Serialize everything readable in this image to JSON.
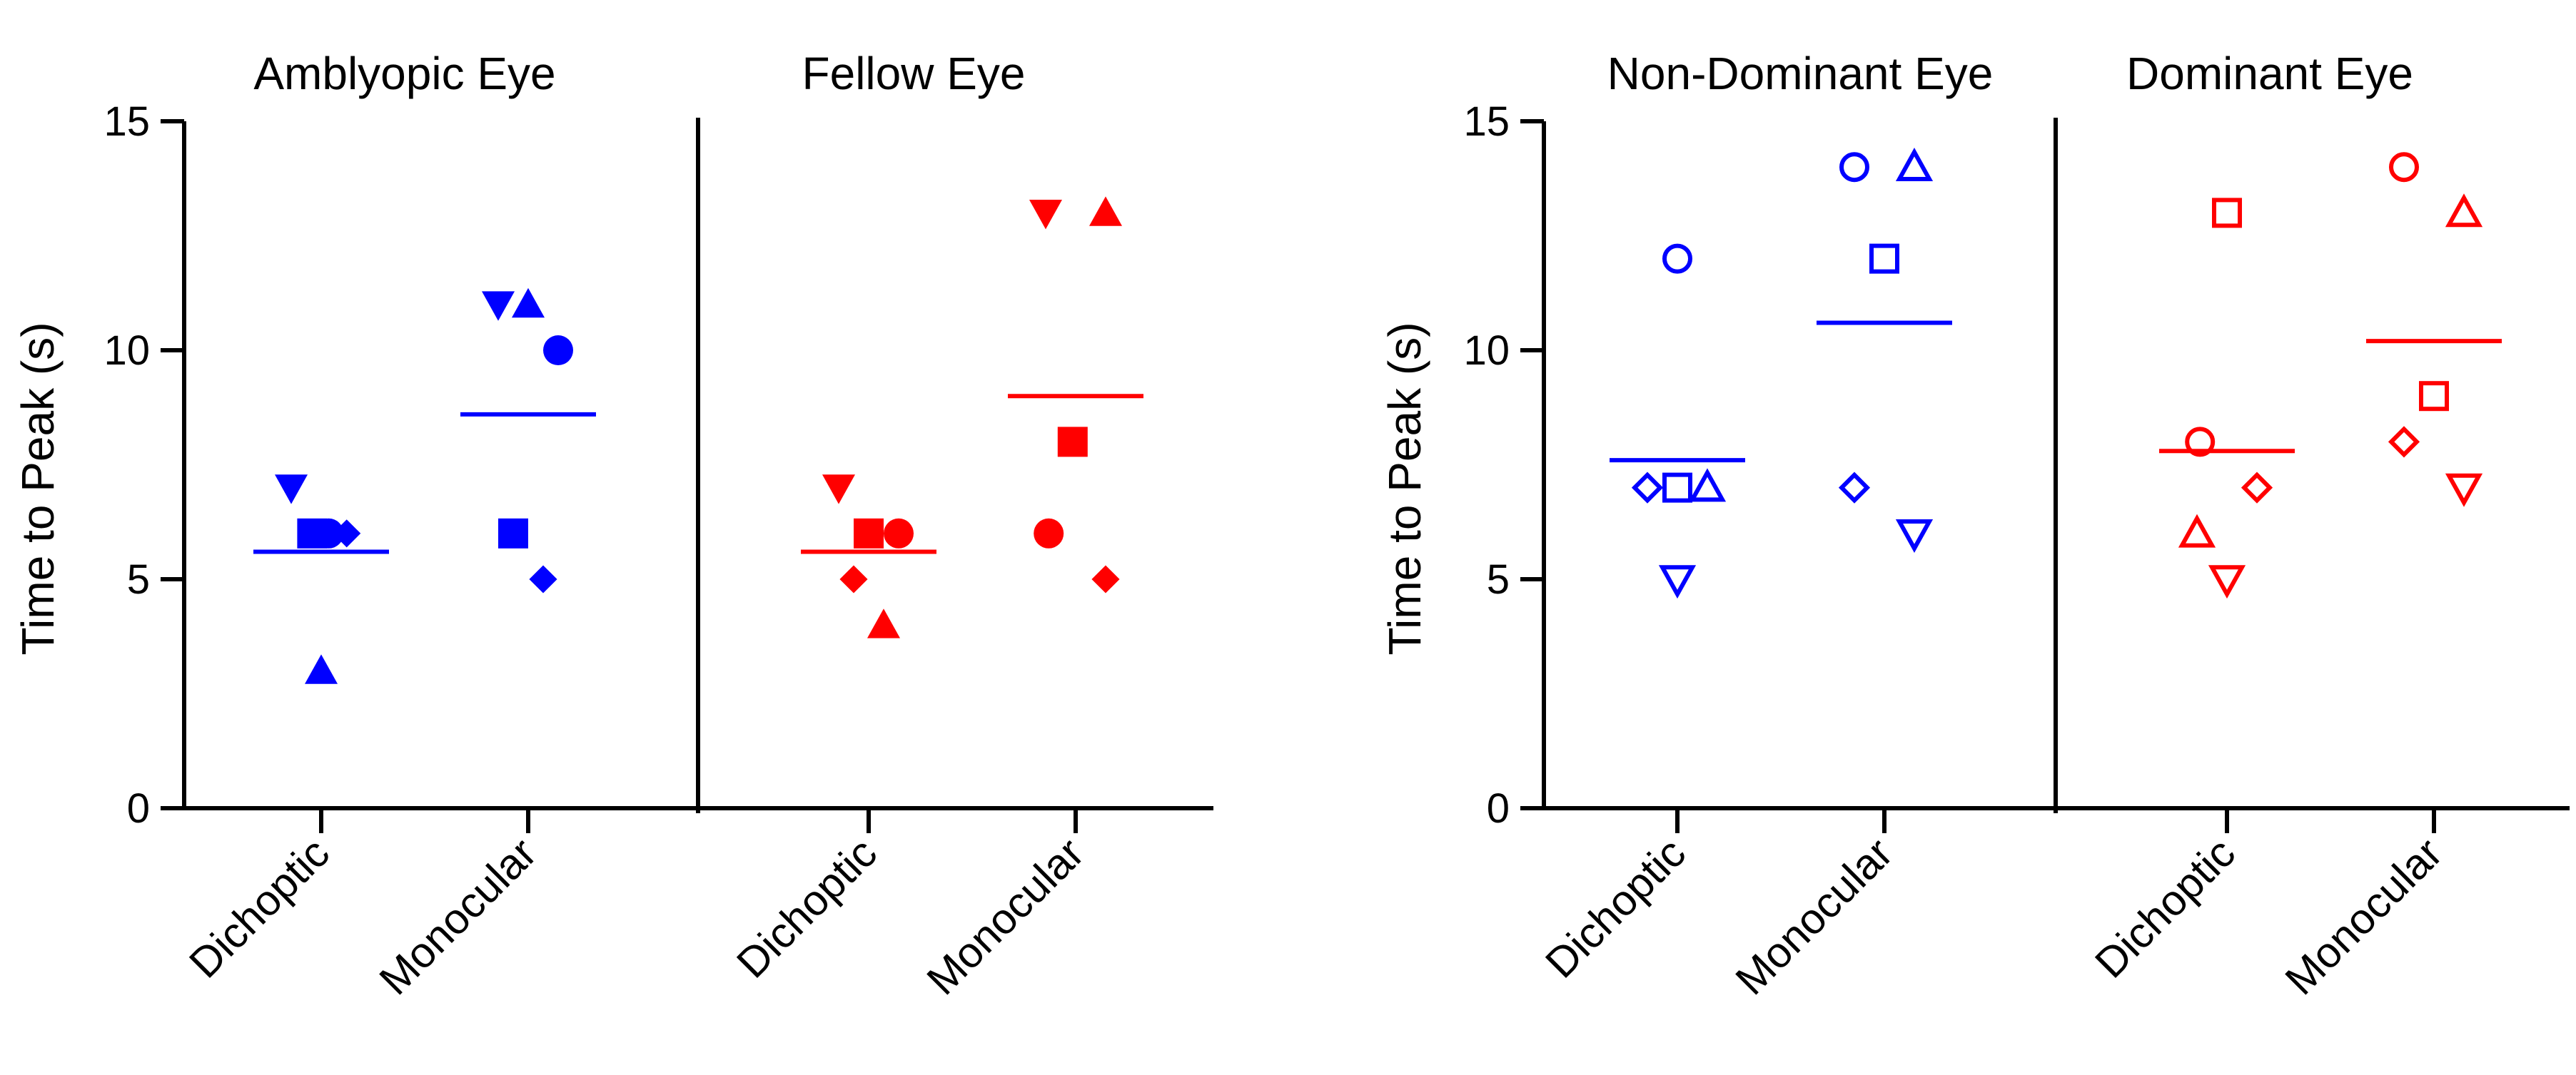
{
  "chart_data": [
    {
      "type": "scatter",
      "subtype": "dot-plot-with-mean",
      "marker_style": "filled",
      "ylabel": "Time to Peak (s)",
      "ylim": [
        0,
        15
      ],
      "yticks": [
        "0",
        "5",
        "10",
        "15"
      ],
      "categories": [
        "Dichoptic",
        "Monocular"
      ],
      "panels": [
        {
          "title": "Amblyopic Eye",
          "color": "#0000ff",
          "groups": [
            {
              "category": "Dichoptic",
              "mean": 5.6,
              "points": [
                {
                  "marker": "triangle-down",
                  "offset": -1,
                  "y": 7
                },
                {
                  "marker": "square",
                  "offset": -0.3,
                  "y": 6
                },
                {
                  "marker": "circle",
                  "offset": 0.25,
                  "y": 6
                },
                {
                  "marker": "diamond",
                  "offset": 0.85,
                  "y": 6
                },
                {
                  "marker": "triangle-up",
                  "offset": 0,
                  "y": 3
                }
              ]
            },
            {
              "category": "Monocular",
              "mean": 8.6,
              "points": [
                {
                  "marker": "triangle-down",
                  "offset": -1,
                  "y": 11
                },
                {
                  "marker": "triangle-up",
                  "offset": 0,
                  "y": 11
                },
                {
                  "marker": "circle",
                  "offset": 1,
                  "y": 10
                },
                {
                  "marker": "square",
                  "offset": -0.5,
                  "y": 6
                },
                {
                  "marker": "diamond",
                  "offset": 0.5,
                  "y": 5
                }
              ]
            }
          ]
        },
        {
          "title": "Fellow Eye",
          "color": "#ff0000",
          "groups": [
            {
              "category": "Dichoptic",
              "mean": 5.6,
              "points": [
                {
                  "marker": "triangle-down",
                  "offset": -1,
                  "y": 7
                },
                {
                  "marker": "square",
                  "offset": 0,
                  "y": 6
                },
                {
                  "marker": "circle",
                  "offset": 1,
                  "y": 6
                },
                {
                  "marker": "diamond",
                  "offset": -0.5,
                  "y": 5
                },
                {
                  "marker": "triangle-up",
                  "offset": 0.5,
                  "y": 4
                }
              ]
            },
            {
              "category": "Monocular",
              "mean": 9.0,
              "points": [
                {
                  "marker": "triangle-down",
                  "offset": -1,
                  "y": 13
                },
                {
                  "marker": "triangle-up",
                  "offset": 1,
                  "y": 13
                },
                {
                  "marker": "square",
                  "offset": -0.1,
                  "y": 8
                },
                {
                  "marker": "circle",
                  "offset": -0.9,
                  "y": 6
                },
                {
                  "marker": "diamond",
                  "offset": 1,
                  "y": 5
                }
              ]
            }
          ]
        }
      ]
    },
    {
      "type": "scatter",
      "subtype": "dot-plot-with-mean",
      "marker_style": "open",
      "ylabel": "Time to Peak (s)",
      "ylim": [
        0,
        15
      ],
      "yticks": [
        "0",
        "5",
        "10",
        "15"
      ],
      "categories": [
        "Dichoptic",
        "Monocular"
      ],
      "panels": [
        {
          "title": "Non-Dominant Eye",
          "color": "#0000ff",
          "groups": [
            {
              "category": "Dichoptic",
              "mean": 7.6,
              "points": [
                {
                  "marker": "circle",
                  "offset": 0,
                  "y": 12
                },
                {
                  "marker": "diamond",
                  "offset": -1,
                  "y": 7
                },
                {
                  "marker": "square",
                  "offset": 0,
                  "y": 7
                },
                {
                  "marker": "triangle-up",
                  "offset": 1,
                  "y": 7
                },
                {
                  "marker": "triangle-down",
                  "offset": 0,
                  "y": 5
                }
              ]
            },
            {
              "category": "Monocular",
              "mean": 10.6,
              "points": [
                {
                  "marker": "circle",
                  "offset": -1,
                  "y": 14
                },
                {
                  "marker": "triangle-up",
                  "offset": 1,
                  "y": 14
                },
                {
                  "marker": "square",
                  "offset": 0,
                  "y": 12
                },
                {
                  "marker": "diamond",
                  "offset": -1,
                  "y": 7
                },
                {
                  "marker": "triangle-down",
                  "offset": 1,
                  "y": 6
                }
              ]
            }
          ]
        },
        {
          "title": "Dominant Eye",
          "color": "#ff0000",
          "groups": [
            {
              "category": "Dichoptic",
              "mean": 7.8,
              "points": [
                {
                  "marker": "square",
                  "offset": 0,
                  "y": 13
                },
                {
                  "marker": "circle",
                  "offset": -0.9,
                  "y": 8
                },
                {
                  "marker": "diamond",
                  "offset": 1,
                  "y": 7
                },
                {
                  "marker": "triangle-up",
                  "offset": -1,
                  "y": 6
                },
                {
                  "marker": "triangle-down",
                  "offset": 0,
                  "y": 5
                }
              ]
            },
            {
              "category": "Monocular",
              "mean": 10.2,
              "points": [
                {
                  "marker": "circle",
                  "offset": -1,
                  "y": 14
                },
                {
                  "marker": "triangle-up",
                  "offset": 1,
                  "y": 13
                },
                {
                  "marker": "square",
                  "offset": 0,
                  "y": 9
                },
                {
                  "marker": "diamond",
                  "offset": -1,
                  "y": 8
                },
                {
                  "marker": "triangle-down",
                  "offset": 1,
                  "y": 7
                }
              ]
            }
          ]
        }
      ]
    }
  ]
}
